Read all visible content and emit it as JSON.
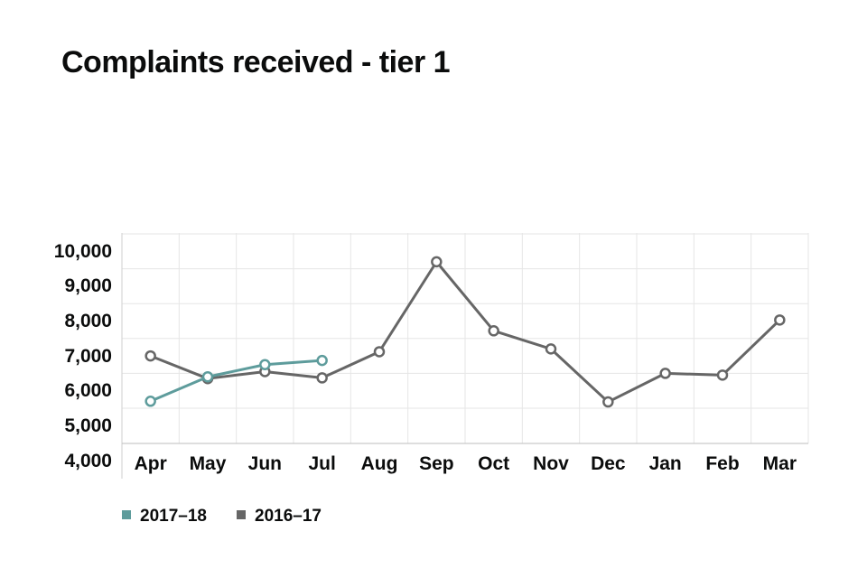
{
  "chart_data": {
    "type": "line",
    "title": "Complaints received - tier 1",
    "xlabel": "",
    "ylabel": "",
    "categories": [
      "Apr",
      "May",
      "Jun",
      "Jul",
      "Aug",
      "Sep",
      "Oct",
      "Nov",
      "Dec",
      "Jan",
      "Feb",
      "Mar"
    ],
    "y_ticks": [
      "4,000",
      "5,000",
      "6,000",
      "7,000",
      "8,000",
      "9,000",
      "10,000"
    ],
    "ylim": [
      4000,
      10000
    ],
    "grid": true,
    "legend_position": "bottom-left",
    "series": [
      {
        "name": "2017–18",
        "color": "#5e9c9c",
        "values": [
          5200,
          5900,
          6250,
          6370,
          null,
          null,
          null,
          null,
          null,
          null,
          null,
          null
        ]
      },
      {
        "name": "2016–17",
        "color": "#666666",
        "values": [
          6500,
          5850,
          6050,
          5870,
          6620,
          9200,
          7220,
          6700,
          5180,
          6000,
          5950,
          7530
        ]
      }
    ]
  }
}
